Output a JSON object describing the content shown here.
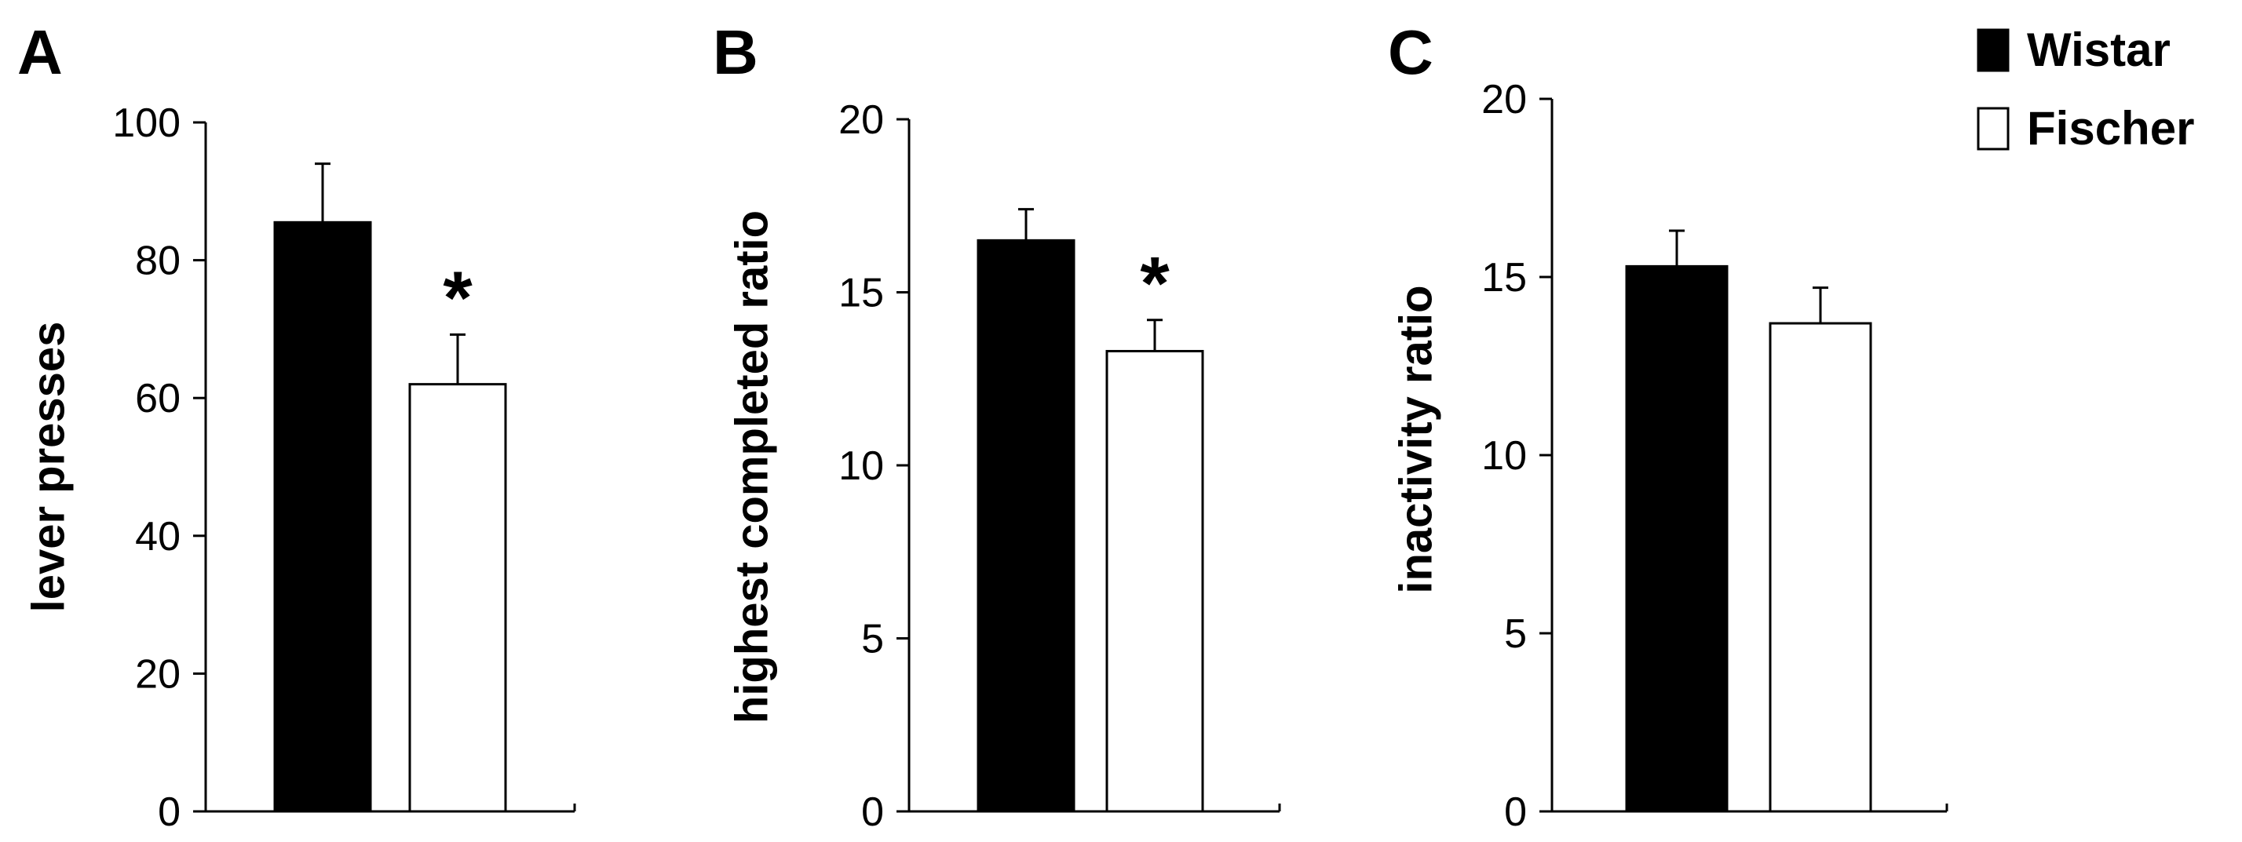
{
  "legend": {
    "items": [
      {
        "label": "Wistar",
        "color": "#000000"
      },
      {
        "label": "Fischer",
        "color": "#ffffff"
      }
    ]
  },
  "chart_data": [
    {
      "type": "bar",
      "panel": "A",
      "title": "",
      "xlabel": "",
      "ylabel": "lever presses",
      "ylim": [
        0,
        100
      ],
      "yticks": [
        0,
        20,
        40,
        60,
        80,
        100
      ],
      "categories": [
        "Wistar",
        "Fischer"
      ],
      "values": [
        85.5,
        62
      ],
      "errors": [
        8.5,
        7.2
      ],
      "colors": [
        "#000000",
        "#ffffff"
      ],
      "significance": [
        "",
        "*"
      ]
    },
    {
      "type": "bar",
      "panel": "B",
      "title": "",
      "xlabel": "",
      "ylabel": "highest completed ratio",
      "ylim": [
        0,
        20
      ],
      "yticks": [
        0,
        5,
        10,
        15,
        20
      ],
      "categories": [
        "Wistar",
        "Fischer"
      ],
      "values": [
        16.5,
        13.3
      ],
      "errors": [
        0.9,
        0.9
      ],
      "colors": [
        "#000000",
        "#ffffff"
      ],
      "significance": [
        "",
        "*"
      ]
    },
    {
      "type": "bar",
      "panel": "C",
      "title": "",
      "xlabel": "",
      "ylabel": "inactivity ratio",
      "ylim": [
        0,
        20
      ],
      "yticks": [
        0,
        5,
        10,
        15,
        20
      ],
      "categories": [
        "Wistar",
        "Fischer"
      ],
      "values": [
        15.3,
        13.7
      ],
      "errors": [
        1.0,
        1.0
      ],
      "colors": [
        "#000000",
        "#ffffff"
      ],
      "significance": [
        "",
        ""
      ]
    }
  ]
}
